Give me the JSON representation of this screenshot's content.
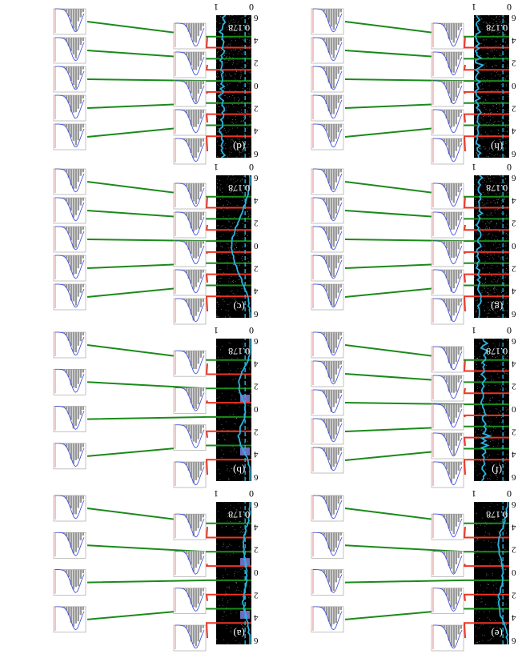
{
  "figure": {
    "orientation_note": "rotated 180",
    "panel_labels": [
      "(a)",
      "(b)",
      "(c)",
      "(d)",
      "(e)",
      "(f)",
      "(g)",
      "(h)"
    ],
    "threshold_label": "0.178",
    "x_tick_labels": [
      "0",
      "1"
    ],
    "y_tick_labels": [
      "6",
      "4",
      "2",
      "0",
      "2",
      "4",
      "6"
    ],
    "colors": {
      "background_scatter": "#000000",
      "profile": "#2bb3df",
      "threshold": "#2bb3df",
      "red_line": "#ee3322",
      "green_line": "#1a8a1a",
      "hist_bar": "#9a9a9a",
      "hist_fit_blue": "#3344dd",
      "hist_fit_red": "#dd3333",
      "band_fill": "#8a8aee"
    }
  },
  "chart_data": [
    {
      "type": "scatter",
      "panel": "(a)",
      "threshold_x": 0.178,
      "xlim": [
        0,
        1
      ],
      "ylim": [
        -6,
        6
      ],
      "profile_peak": 0.22,
      "profile_shape": "double",
      "noise": "low",
      "histograms": 8
    },
    {
      "type": "scatter",
      "panel": "(b)",
      "threshold_x": 0.178,
      "xlim": [
        0,
        1
      ],
      "ylim": [
        -6,
        6
      ],
      "profile_peak": 0.42,
      "profile_shape": "double-dip",
      "noise": "low",
      "histograms": 8
    },
    {
      "type": "scatter",
      "panel": "(c)",
      "threshold_x": 0.178,
      "xlim": [
        0,
        1
      ],
      "ylim": [
        -6,
        6
      ],
      "profile_peak": 0.55,
      "profile_shape": "single",
      "noise": "medium",
      "histograms": 10
    },
    {
      "type": "scatter",
      "panel": "(d)",
      "threshold_x": 0.178,
      "xlim": [
        0,
        1
      ],
      "ylim": [
        -6,
        6
      ],
      "profile_peak": 0.82,
      "profile_shape": "flat",
      "noise": "high",
      "histograms": 10
    },
    {
      "type": "scatter",
      "panel": "(e)",
      "threshold_x": 0.178,
      "xlim": [
        0,
        1
      ],
      "ylim": [
        -6,
        6
      ],
      "profile_peak": 0.3,
      "profile_shape": "double",
      "noise": "low",
      "histograms": 8
    },
    {
      "type": "scatter",
      "panel": "(f)",
      "threshold_x": 0.178,
      "xlim": [
        0,
        1
      ],
      "ylim": [
        -6,
        6
      ],
      "profile_peak": 0.72,
      "profile_shape": "flat",
      "noise": "medium",
      "histograms": 10
    },
    {
      "type": "scatter",
      "panel": "(g)",
      "threshold_x": 0.178,
      "xlim": [
        0,
        1
      ],
      "ylim": [
        -6,
        6
      ],
      "profile_peak": 0.86,
      "profile_shape": "flat",
      "noise": "high",
      "histograms": 10
    },
    {
      "type": "scatter",
      "panel": "(h)",
      "threshold_x": 0.178,
      "xlim": [
        0,
        1
      ],
      "ylim": [
        -6,
        6
      ],
      "profile_peak": 0.9,
      "profile_shape": "flat",
      "noise": "high",
      "histograms": 10
    }
  ]
}
